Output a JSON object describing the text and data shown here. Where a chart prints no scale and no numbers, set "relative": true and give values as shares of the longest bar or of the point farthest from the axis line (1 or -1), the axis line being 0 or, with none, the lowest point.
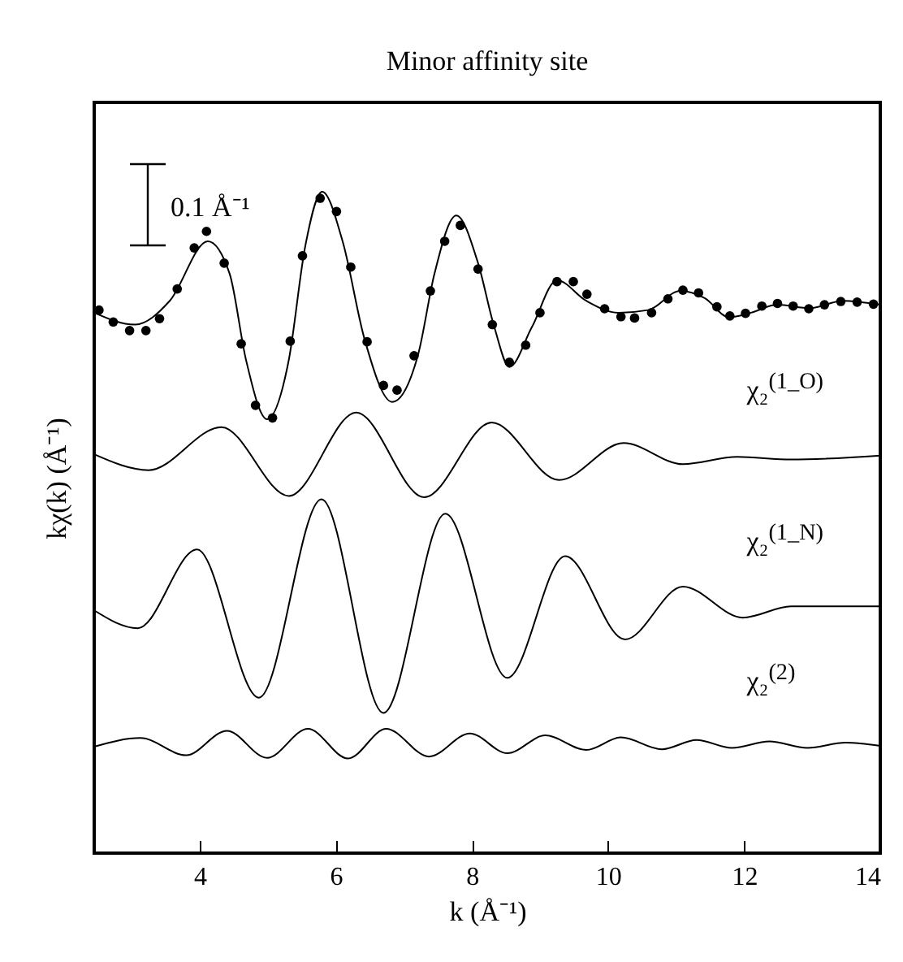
{
  "chart_data": {
    "type": "line",
    "title": "Minor affinity site",
    "xlabel": "k (Å⁻¹)",
    "ylabel": "kχ(k) (Å⁻¹)",
    "relative": true,
    "xlim": [
      2.45,
      14
    ],
    "xticks": [
      4,
      6,
      8,
      10,
      12,
      14
    ],
    "grid": false,
    "legend": false,
    "line_style": "solid",
    "annotations": [
      "0.1 Å⁻¹"
    ],
    "series": [
      {
        "type": "scatter",
        "marker": "circle",
        "color": "#000000",
        "x": [
          2.52,
          2.73,
          2.97,
          3.21,
          3.41,
          3.67,
          3.92,
          4.1,
          4.36,
          4.61,
          4.82,
          5.07,
          5.33,
          5.51,
          5.77,
          6.01,
          6.22,
          6.46,
          6.7,
          6.9,
          7.15,
          7.39,
          7.6,
          7.83,
          8.09,
          8.3,
          8.55,
          8.79,
          9.0,
          9.25,
          9.49,
          9.69,
          9.95,
          10.19,
          10.39,
          10.64,
          10.88,
          11.1,
          11.33,
          11.6,
          11.79,
          12.02,
          12.26,
          12.49,
          12.72,
          12.95,
          13.18,
          13.42,
          13.66,
          13.9
        ],
        "values": [
          0.821,
          0.803,
          0.79,
          0.79,
          0.808,
          0.853,
          0.915,
          0.94,
          0.892,
          0.77,
          0.677,
          0.658,
          0.774,
          0.903,
          0.99,
          0.97,
          0.886,
          0.773,
          0.707,
          0.7,
          0.752,
          0.85,
          0.925,
          0.949,
          0.883,
          0.799,
          0.742,
          0.768,
          0.817,
          0.864,
          0.864,
          0.845,
          0.823,
          0.811,
          0.809,
          0.817,
          0.838,
          0.851,
          0.847,
          0.826,
          0.812,
          0.816,
          0.827,
          0.831,
          0.827,
          0.823,
          0.829,
          0.834,
          0.833,
          0.83
        ]
      },
      {
        "type": "line",
        "marker": "none",
        "color": "#000000",
        "x": [
          2.45,
          3.05,
          3.56,
          4.12,
          4.44,
          4.68,
          4.99,
          5.31,
          5.55,
          5.8,
          6.1,
          6.42,
          6.83,
          7.21,
          7.45,
          7.77,
          8.09,
          8.33,
          8.55,
          8.88,
          9.25,
          9.68,
          10.15,
          10.59,
          11.06,
          11.42,
          11.78,
          12.1,
          12.49,
          12.97,
          13.45,
          14.0
        ],
        "values": [
          0.817,
          0.799,
          0.835,
          0.925,
          0.876,
          0.746,
          0.656,
          0.746,
          0.917,
          1.0,
          0.925,
          0.778,
          0.682,
          0.754,
          0.876,
          0.964,
          0.892,
          0.795,
          0.735,
          0.795,
          0.866,
          0.835,
          0.817,
          0.821,
          0.85,
          0.839,
          0.81,
          0.817,
          0.829,
          0.824,
          0.835,
          0.829
        ]
      },
      {
        "type": "line",
        "marker": "none",
        "name": "χ₂$^{(1_O)}$",
        "color": "#000000",
        "x": [
          2.45,
          3.25,
          4.32,
          5.31,
          6.3,
          7.3,
          8.29,
          9.28,
          10.23,
          11.1,
          11.9,
          12.69,
          14.0
        ],
        "values": [
          0.603,
          0.579,
          0.644,
          0.54,
          0.666,
          0.538,
          0.651,
          0.564,
          0.62,
          0.588,
          0.599,
          0.595,
          0.601
        ]
      },
      {
        "type": "line",
        "marker": "none",
        "name": "χ₂$^{(1_N)}$",
        "color": "#000000",
        "x": [
          2.45,
          3.09,
          3.96,
          4.87,
          5.79,
          6.7,
          7.61,
          8.52,
          9.37,
          10.25,
          11.1,
          11.98,
          12.69,
          14.0
        ],
        "values": [
          0.367,
          0.34,
          0.459,
          0.235,
          0.535,
          0.212,
          0.513,
          0.265,
          0.449,
          0.323,
          0.403,
          0.356,
          0.373,
          0.373
        ]
      },
      {
        "type": "line",
        "marker": "none",
        "name": "χ₂$^{(2)}$",
        "color": "#000000",
        "x": [
          2.45,
          3.13,
          3.8,
          4.4,
          4.99,
          5.59,
          6.18,
          6.74,
          7.37,
          7.97,
          8.52,
          9.08,
          9.68,
          10.19,
          10.79,
          11.3,
          11.82,
          12.37,
          12.93,
          13.49,
          14.0
        ],
        "values": [
          0.161,
          0.174,
          0.148,
          0.185,
          0.144,
          0.188,
          0.143,
          0.188,
          0.146,
          0.181,
          0.151,
          0.178,
          0.156,
          0.175,
          0.157,
          0.171,
          0.159,
          0.169,
          0.159,
          0.167,
          0.162
        ]
      }
    ]
  }
}
